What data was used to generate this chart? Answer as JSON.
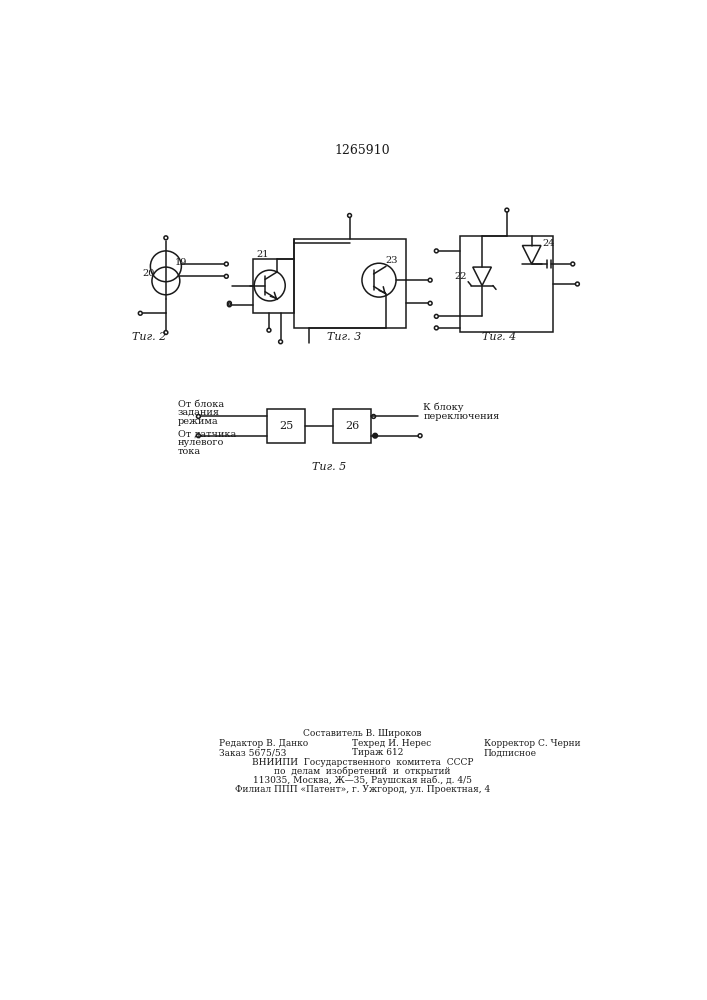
{
  "title": "1265910",
  "background_color": "#ffffff",
  "line_color": "#1a1a1a",
  "text_color": "#1a1a1a",
  "fig2_label": "Τиг. 2",
  "fig3_label": "Τиг. 3",
  "fig4_label": "Τиг. 4",
  "fig5_label": "Τиг. 5",
  "footer_line1": "Составитель В. Широков",
  "footer_col1_line1": "Редактор В. Данко",
  "footer_col1_line2": "Заказ 5675/53",
  "footer_col2_line1": "Техред И. Нерес",
  "footer_col2_line2": "Тираж 612",
  "footer_col3_line1": "Корректор С. Черни",
  "footer_col3_line2": "Подписное",
  "footer_vnipi1": "ВНИИПИ  Государственного  комитета  СССР",
  "footer_vnipi2": "по  делам  изобретений  и  открытий",
  "footer_vnipi3": "113035, Москва, Ж—35, Раушская наб., д. 4/5",
  "footer_vnipi4": "Филиал ППП «Патент», г. Ужгород, ул. Проектная, 4",
  "fig5_left1": "От блока",
  "fig5_left2": "задания",
  "fig5_left3": "режима",
  "fig5_left4": "От датчика",
  "fig5_left5": "нулевого",
  "fig5_left6": "тока",
  "fig5_right1": "К блоку",
  "fig5_right2": "переключения"
}
